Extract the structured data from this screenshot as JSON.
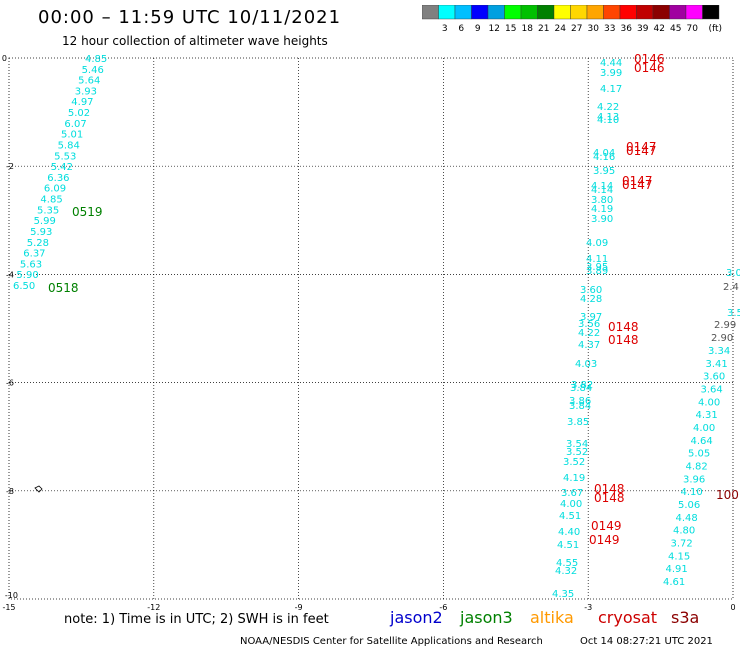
{
  "header": {
    "title": "00:00 – 11:59 UTC 10/11/2021",
    "subtitle": "12 hour collection of altimeter wave heights"
  },
  "scale": {
    "unit": "(ft)",
    "labels": [
      "3",
      "6",
      "9",
      "12",
      "15",
      "18",
      "21",
      "24",
      "27",
      "30",
      "33",
      "36",
      "39",
      "42",
      "45",
      "70"
    ],
    "colors": [
      "#808080",
      "#00ffff",
      "#00bfff",
      "#0000ff",
      "#00a0e0",
      "#00ff00",
      "#00c000",
      "#008000",
      "#ffff00",
      "#ffd700",
      "#ffa500",
      "#ff4500",
      "#ff0000",
      "#c00000",
      "#8b0000",
      "#a000a0",
      "#ff00ff",
      "#000000"
    ]
  },
  "axes": {
    "x_ticks": [
      "-15",
      "-12",
      "-9",
      "-6",
      "-3",
      "0"
    ],
    "y_ticks": [
      "0",
      "-2",
      "-4",
      "-6",
      "-8",
      "-10"
    ]
  },
  "tracks": [
    {
      "satellite": "jason3",
      "color": "#00dddd",
      "values": [
        "4.85",
        "5.46",
        "5.64",
        "3.93",
        "4.97",
        "5.02",
        "6.07",
        "5.01",
        "5.84",
        "5.53",
        "5.42",
        "6.36",
        "6.09",
        "4.85",
        "5.35",
        "5.99",
        "5.93",
        "5.28",
        "6.37",
        "5.63",
        "5.90",
        "6.50"
      ]
    },
    {
      "satellite": "cryosat-a",
      "color": "#00dddd",
      "values": [
        "4.44",
        "3.99",
        "4.17",
        "4.22",
        "4.13",
        "4.10",
        "4.04",
        "4.16",
        "3.95",
        "4.14",
        "4.14",
        "3.80",
        "4.19",
        "3.90",
        "4.09",
        "4.11",
        "3.95",
        "3.89",
        "3.60",
        "4.28",
        "3.97",
        "3.56",
        "4.22",
        "4.37",
        "4.03",
        "3.82",
        "3.84",
        "3.86",
        "3.84",
        "3.85",
        "3.54",
        "3.52",
        "3.52",
        "4.19",
        "3.67",
        "4.00",
        "4.51",
        "4.40",
        "4.51",
        "4.55",
        "4.32",
        "4.35"
      ]
    },
    {
      "satellite": "s3a",
      "color": "#00dddd",
      "values": [
        "3.34",
        "3.41",
        "3.60",
        "3.64",
        "4.00",
        "4.31",
        "4.00",
        "4.64",
        "5.05",
        "4.82",
        "3.96",
        "4.10",
        "5.06",
        "4.48",
        "4.80",
        "3.72",
        "4.15",
        "4.91",
        "4.61"
      ]
    },
    {
      "satellite": "edge",
      "color": "#00dddd",
      "values": [
        "3.0",
        "3.58"
      ]
    },
    {
      "satellite": "edge-grey",
      "color": "#555555",
      "values": [
        "2.4",
        "2.99",
        "2.90"
      ]
    }
  ],
  "pass_labels": [
    {
      "text": "0519",
      "color": "#008000"
    },
    {
      "text": "0518",
      "color": "#008000"
    },
    {
      "text": "0146",
      "color": "#dd0000"
    },
    {
      "text": "0146",
      "color": "#dd0000"
    },
    {
      "text": "0147",
      "color": "#dd0000"
    },
    {
      "text": "0147",
      "color": "#dd0000"
    },
    {
      "text": "0147",
      "color": "#dd0000"
    },
    {
      "text": "0147",
      "color": "#dd0000"
    },
    {
      "text": "0148",
      "color": "#dd0000"
    },
    {
      "text": "0148",
      "color": "#dd0000"
    },
    {
      "text": "0148",
      "color": "#dd0000"
    },
    {
      "text": "0148",
      "color": "#dd0000"
    },
    {
      "text": "0149",
      "color": "#dd0000"
    },
    {
      "text": "0149",
      "color": "#dd0000"
    },
    {
      "text": "100",
      "color": "#8b0000"
    }
  ],
  "footer": {
    "note": "note:  1) Time is in UTC;  2) SWH is in feet",
    "satellites": [
      {
        "name": "jason2",
        "color": "#0000cc"
      },
      {
        "name": "jason3",
        "color": "#008000"
      },
      {
        "name": "altika",
        "color": "#ff9900"
      },
      {
        "name": "cryosat",
        "color": "#cc0000"
      },
      {
        "name": "s3a",
        "color": "#8b0000"
      }
    ],
    "credit": "NOAA/NESDIS Center for Satellite Applications and Research",
    "timestamp": "Oct 14 08:27:21 UTC 2021"
  }
}
